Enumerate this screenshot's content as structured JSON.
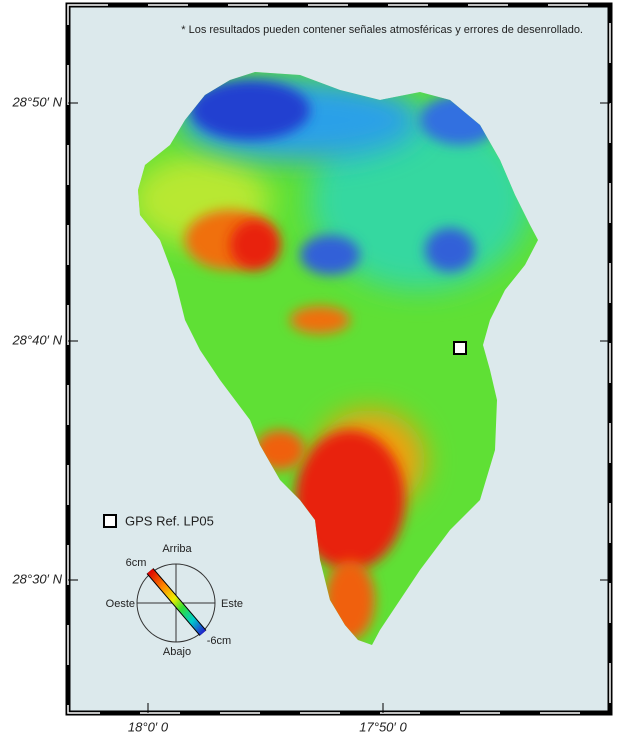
{
  "note": "* Los resultados pueden contener señales atmosféricas y errores de desenrollado.",
  "lat_labels": [
    "28°50′ N",
    "28°40′ N",
    "28°30′ N"
  ],
  "lon_labels": [
    "18°0′ 0",
    "17°50′ 0"
  ],
  "legend": {
    "gps_label": "GPS Ref. LP05",
    "compass": {
      "up": "Arriba",
      "down": "Abajo",
      "west": "Oeste",
      "east": "Este",
      "max": "6cm",
      "min": "-6cm"
    }
  }
}
